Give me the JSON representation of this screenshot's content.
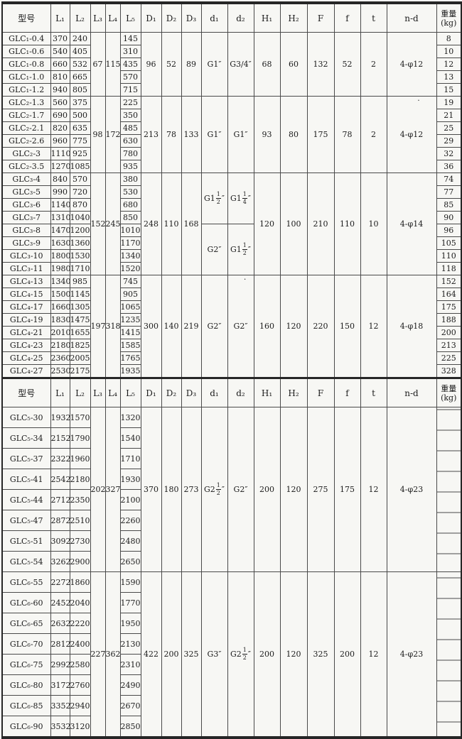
{
  "colors": {
    "paper": "#f7f7f4",
    "ink": "#1b1b1b",
    "grid_line": "#4a4a4a",
    "outer_border": "#262626"
  },
  "header": {
    "model": "型号",
    "dims": [
      "L₁",
      "L₂",
      "L₃",
      "L₄",
      "L₅",
      "D₁",
      "D₂",
      "D₃",
      "d₁",
      "d₂",
      "H₁",
      "H₂",
      "F",
      "f",
      "t"
    ],
    "nd": "n-d",
    "weight_line1": "重量",
    "weight_line2": "(kg)"
  },
  "sections": [
    {
      "row_class": "up",
      "has_weight_values": true,
      "groups": [
        {
          "L3": "67",
          "L4": "115",
          "D1": "96",
          "D2": "52",
          "D3": "89",
          "d1": [
            {
              "label": "G1″",
              "span": 5
            }
          ],
          "d2": [
            {
              "label": "G3/4″",
              "span": 5
            }
          ],
          "H1": "68",
          "H2": "60",
          "F": "132",
          "f": "52",
          "t": "2",
          "nd": "4-φ12",
          "rows": [
            [
              "GLC₁-0.4",
              "370",
              "240",
              "145",
              "8"
            ],
            [
              "GLC₁-0.6",
              "540",
              "405",
              "310",
              "10"
            ],
            [
              "GLC₁-0.8",
              "660",
              "532",
              "435",
              "12"
            ],
            [
              "GLC₁-1.0",
              "810",
              "665",
              "570",
              "13"
            ],
            [
              "GLC₁-1.2",
              "940",
              "805",
              "715",
              "15"
            ]
          ]
        },
        {
          "L3": "98",
          "L4": "172",
          "D1": "213",
          "D2": "78",
          "D3": "133",
          "d1": [
            {
              "label": "G1″",
              "span": 6
            }
          ],
          "d2": [
            {
              "label": "G1″",
              "span": 6
            }
          ],
          "H1": "93",
          "H2": "80",
          "F": "175",
          "f": "78",
          "t": "2",
          "nd": "4-φ12",
          "nd_dot": true,
          "rows": [
            [
              "GLC₂-1.3",
              "560",
              "375",
              "225",
              "19"
            ],
            [
              "GLC₂-1.7",
              "690",
              "500",
              "350",
              "21"
            ],
            [
              "GLC₂-2.1",
              "820",
              "635",
              "485",
              "25"
            ],
            [
              "GLC₂-2.6",
              "960",
              "775",
              "630",
              "29"
            ],
            [
              "GLC₂-3",
              "1110",
              "925",
              "780",
              "32"
            ],
            [
              "GLC₂-3.5",
              "1270",
              "1085",
              "935",
              "36"
            ]
          ]
        },
        {
          "L3": "152",
          "L4": "245",
          "D1": "248",
          "D2": "110",
          "D3": "168",
          "d1": [
            {
              "label": "G1{1/2}″",
              "span": 4
            },
            {
              "label": "G2″",
              "span": 4
            }
          ],
          "d2": [
            {
              "label": "G1{1/4}″",
              "span": 4
            },
            {
              "label": "G1{1/2}″",
              "span": 4
            }
          ],
          "H1": "120",
          "H2": "100",
          "F": "210",
          "f": "110",
          "t": "10",
          "nd": "4-φ14",
          "rows": [
            [
              "GLC₃-4",
              "840",
              "570",
              "380",
              "74"
            ],
            [
              "GLC₃-5",
              "990",
              "720",
              "530",
              "77"
            ],
            [
              "GLC₃-6",
              "1140",
              "870",
              "680",
              "85"
            ],
            [
              "GLC₃-7",
              "1310",
              "1040",
              "850",
              "90"
            ],
            [
              "GLC₃-8",
              "1470",
              "1200",
              "1010",
              "96"
            ],
            [
              "GLC₃-9",
              "1630",
              "1360",
              "1170",
              "105"
            ],
            [
              "GLC₃-10",
              "1800",
              "1530",
              "1340",
              "110"
            ],
            [
              "GLC₃-11",
              "1980",
              "1710",
              "1520",
              "118"
            ]
          ]
        },
        {
          "L3": "197",
          "L4": "318",
          "D1": "300",
          "D2": "140",
          "D3": "219",
          "d1": [
            {
              "label": "G2″",
              "span": 8
            }
          ],
          "d2": [
            {
              "label": "G2″",
              "span": 8
            }
          ],
          "d2_dot": true,
          "H1": "160",
          "H2": "120",
          "F": "220",
          "f": "150",
          "t": "12",
          "nd": "4-φ18",
          "rows": [
            [
              "GLC₄-13",
              "1340",
              "985",
              "745",
              "152"
            ],
            [
              "GLC₄-15",
              "1500",
              "1145",
              "905",
              "164"
            ],
            [
              "GLC₄-17",
              "1660",
              "1305",
              "1065",
              "175"
            ],
            [
              "GLC₄-19",
              "1830",
              "1475",
              "1235",
              "188"
            ],
            [
              "GLC₄-21",
              "2010",
              "1655",
              "1415",
              "200"
            ],
            [
              "GLC₄-23",
              "2180",
              "1825",
              "1585",
              "213"
            ],
            [
              "GLC₄-25",
              "2360",
              "2005",
              "1765",
              "225"
            ],
            [
              "GLC₄-27",
              "2530",
              "2175",
              "1935",
              "328"
            ]
          ]
        }
      ]
    },
    {
      "row_class": "low",
      "has_weight_values": false,
      "groups": [
        {
          "L3": "202",
          "L4": "327",
          "D1": "370",
          "D2": "180",
          "D3": "273",
          "d1": [
            {
              "label": "G2{1/2}″",
              "span": 8
            }
          ],
          "d2": [
            {
              "label": "G2″",
              "span": 8
            }
          ],
          "H1": "200",
          "H2": "120",
          "F": "275",
          "f": "175",
          "t": "12",
          "nd": "4-φ23",
          "weight_blank": true,
          "rows": [
            [
              "GLC₅-30",
              "1932",
              "1570",
              "1320",
              ""
            ],
            [
              "GLC₅-34",
              "2152",
              "1790",
              "1540",
              ""
            ],
            [
              "GLC₅-37",
              "2322",
              "1960",
              "1710",
              ""
            ],
            [
              "GLC₅-41",
              "2542",
              "2180",
              "1930",
              ""
            ],
            [
              "GLC₅-44",
              "2712",
              "2350",
              "2100",
              ""
            ],
            [
              "GLC₅-47",
              "2872",
              "2510",
              "2260",
              ""
            ],
            [
              "GLC₅-51",
              "3092",
              "2730",
              "2480",
              ""
            ],
            [
              "GLC₅-54",
              "3262",
              "2900",
              "2650",
              ""
            ]
          ]
        },
        {
          "L3": "227",
          "L4": "362",
          "D1": "422",
          "D2": "200",
          "D3": "325",
          "d1": [
            {
              "label": "G3″",
              "span": 8
            }
          ],
          "d2": [
            {
              "label": "G2{1/2}″",
              "span": 8
            }
          ],
          "H1": "200",
          "H2": "120",
          "F": "325",
          "f": "200",
          "t": "12",
          "nd": "4-φ23",
          "weight_blank": true,
          "rows": [
            [
              "GLC₆-55",
              "2272",
              "1860",
              "1590",
              ""
            ],
            [
              "GLC₆-60",
              "2452",
              "2040",
              "1770",
              ""
            ],
            [
              "GLC₆-65",
              "2632",
              "2220",
              "1950",
              ""
            ],
            [
              "GLC₆-70",
              "2812",
              "2400",
              "2130",
              ""
            ],
            [
              "GLC₆-75",
              "2992",
              "2580",
              "2310",
              ""
            ],
            [
              "GLC₆-80",
              "3172",
              "2760",
              "2490",
              ""
            ],
            [
              "GLC₆-85",
              "3352",
              "2940",
              "2670",
              ""
            ],
            [
              "GLC₆-90",
              "3532",
              "3120",
              "2850",
              ""
            ]
          ]
        }
      ]
    }
  ]
}
